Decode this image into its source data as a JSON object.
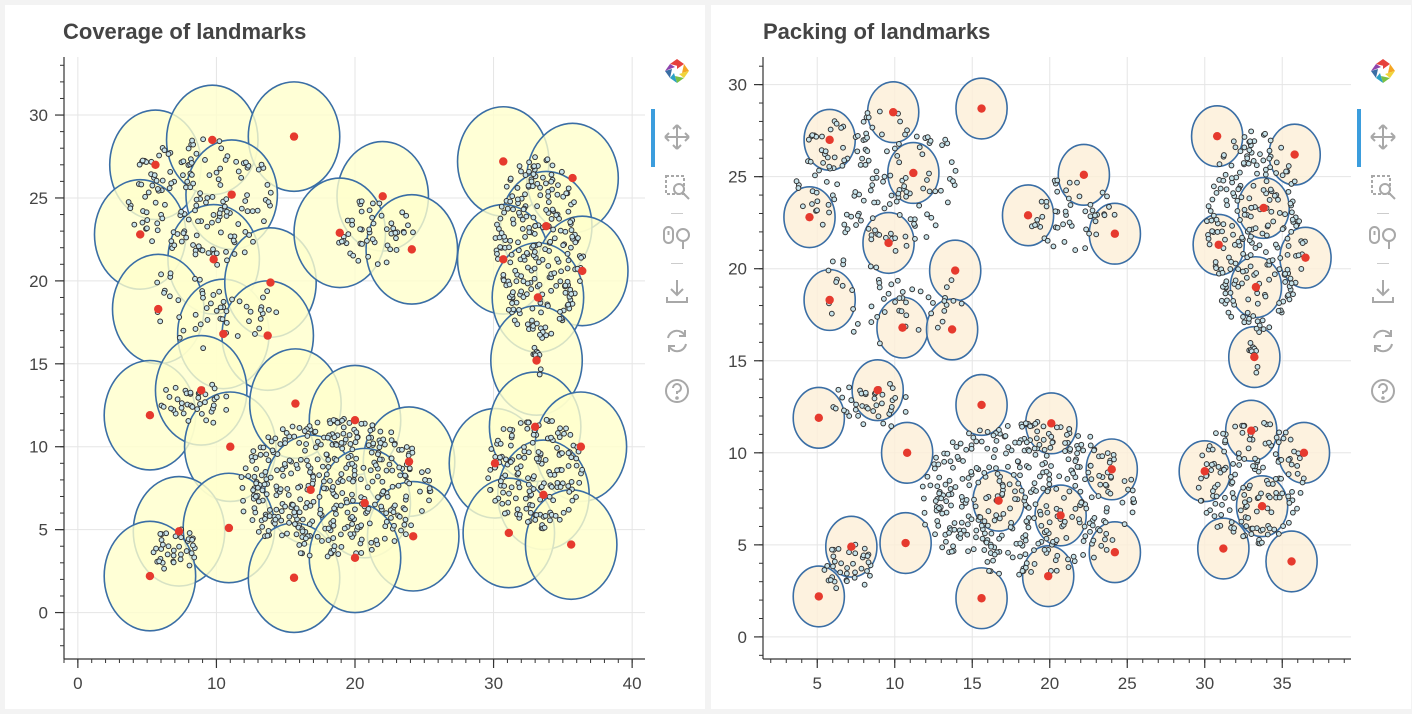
{
  "chart_data": [
    {
      "type": "scatter",
      "title": "Coverage of landmarks",
      "xlim": [
        -1,
        41
      ],
      "ylim": [
        -2.8,
        33.5
      ],
      "x_ticks": [
        0,
        10,
        20,
        30,
        40
      ],
      "y_ticks": [
        0,
        5,
        10,
        15,
        20,
        25,
        30
      ],
      "grid": true,
      "circle_radius": 3.3,
      "circle_fill": "#ffffcc",
      "circle_stroke": "#3a6ea5",
      "landmark_color": "#e63a2e",
      "point_stroke": "#333333",
      "point_fill": "#c8e4ec",
      "landmarks": [
        [
          5.6,
          27.0
        ],
        [
          9.7,
          28.5
        ],
        [
          15.6,
          28.7
        ],
        [
          11.1,
          25.2
        ],
        [
          4.5,
          22.8
        ],
        [
          9.8,
          21.3
        ],
        [
          5.8,
          18.3
        ],
        [
          10.5,
          16.8
        ],
        [
          13.9,
          19.9
        ],
        [
          13.7,
          16.7
        ],
        [
          22.0,
          25.1
        ],
        [
          18.9,
          22.9
        ],
        [
          24.1,
          21.9
        ],
        [
          30.7,
          27.2
        ],
        [
          35.7,
          26.2
        ],
        [
          33.8,
          23.3
        ],
        [
          30.7,
          21.3
        ],
        [
          36.4,
          20.6
        ],
        [
          33.2,
          19.0
        ],
        [
          33.1,
          15.2
        ],
        [
          5.2,
          11.9
        ],
        [
          8.9,
          13.4
        ],
        [
          11.0,
          10.0
        ],
        [
          15.7,
          12.6
        ],
        [
          20.0,
          11.6
        ],
        [
          23.9,
          9.1
        ],
        [
          16.8,
          7.4
        ],
        [
          20.7,
          6.6
        ],
        [
          30.1,
          9.0
        ],
        [
          33.0,
          11.2
        ],
        [
          36.3,
          10.0
        ],
        [
          33.6,
          7.1
        ],
        [
          24.2,
          4.6
        ],
        [
          31.1,
          4.8
        ],
        [
          35.6,
          4.1
        ],
        [
          7.3,
          4.9
        ],
        [
          10.9,
          5.1
        ],
        [
          5.2,
          2.2
        ],
        [
          15.6,
          2.1
        ],
        [
          20.0,
          3.3
        ]
      ],
      "clusters": [
        [
          9,
          25,
          5.6,
          3.7,
          150
        ],
        [
          10,
          19,
          5.0,
          3.2,
          60
        ],
        [
          21.5,
          23,
          3.0,
          2.0,
          50
        ],
        [
          33.3,
          22,
          3.2,
          5.5,
          240
        ],
        [
          33.2,
          15.5,
          0.35,
          1.4,
          12
        ],
        [
          8.5,
          12.6,
          2.8,
          1.3,
          40
        ],
        [
          18.5,
          7.5,
          7.0,
          4.2,
          400
        ],
        [
          33,
          8.5,
          3.5,
          3.5,
          160
        ],
        [
          7,
          3.8,
          1.7,
          1.3,
          36
        ]
      ]
    },
    {
      "type": "scatter",
      "title": "Packing of landmarks",
      "xlim": [
        1.5,
        39.5
      ],
      "ylim": [
        -1.2,
        31.5
      ],
      "x_ticks": [
        5,
        10,
        15,
        20,
        25,
        30,
        35
      ],
      "y_ticks": [
        0,
        5,
        10,
        15,
        20,
        25,
        30
      ],
      "grid": true,
      "circle_radius": 1.65,
      "circle_fill": "#fdefd7",
      "circle_stroke": "#3a6ea5",
      "landmark_color": "#e63a2e",
      "point_stroke": "#333333",
      "point_fill": "#c8e4ec",
      "landmarks": [
        [
          5.8,
          27.0
        ],
        [
          9.9,
          28.5
        ],
        [
          15.6,
          28.7
        ],
        [
          11.2,
          25.2
        ],
        [
          4.5,
          22.8
        ],
        [
          9.6,
          21.4
        ],
        [
          5.8,
          18.3
        ],
        [
          10.5,
          16.8
        ],
        [
          13.9,
          19.9
        ],
        [
          13.7,
          16.7
        ],
        [
          22.2,
          25.1
        ],
        [
          18.6,
          22.9
        ],
        [
          24.2,
          21.9
        ],
        [
          30.8,
          27.2
        ],
        [
          35.8,
          26.2
        ],
        [
          33.8,
          23.3
        ],
        [
          30.9,
          21.3
        ],
        [
          36.5,
          20.6
        ],
        [
          33.3,
          19.0
        ],
        [
          33.2,
          15.2
        ],
        [
          5.1,
          11.9
        ],
        [
          8.9,
          13.4
        ],
        [
          10.8,
          10.0
        ],
        [
          15.6,
          12.6
        ],
        [
          20.1,
          11.6
        ],
        [
          24.0,
          9.1
        ],
        [
          16.7,
          7.4
        ],
        [
          20.7,
          6.6
        ],
        [
          30.0,
          9.0
        ],
        [
          33.0,
          11.2
        ],
        [
          36.4,
          10.0
        ],
        [
          33.7,
          7.1
        ],
        [
          24.2,
          4.6
        ],
        [
          31.2,
          4.8
        ],
        [
          35.6,
          4.1
        ],
        [
          7.2,
          4.9
        ],
        [
          10.7,
          5.1
        ],
        [
          5.1,
          2.2
        ],
        [
          15.6,
          2.1
        ],
        [
          19.9,
          3.3
        ]
      ],
      "clusters": [
        [
          9,
          25,
          5.6,
          3.7,
          150
        ],
        [
          10,
          19,
          5.0,
          3.2,
          60
        ],
        [
          21.5,
          23,
          3.0,
          2.0,
          50
        ],
        [
          33.3,
          22,
          3.2,
          5.5,
          240
        ],
        [
          33.2,
          15.5,
          0.35,
          1.4,
          12
        ],
        [
          8.5,
          12.6,
          2.8,
          1.3,
          40
        ],
        [
          18.5,
          7.5,
          7.0,
          4.2,
          400
        ],
        [
          33,
          8.5,
          3.5,
          3.5,
          160
        ],
        [
          7,
          3.8,
          1.7,
          1.3,
          36
        ]
      ]
    }
  ],
  "toolbar": {
    "tools": [
      "bokeh-logo-icon",
      "pan-icon",
      "box-zoom-icon",
      "wheel-zoom-icon",
      "save-icon",
      "reset-icon",
      "help-icon"
    ]
  }
}
